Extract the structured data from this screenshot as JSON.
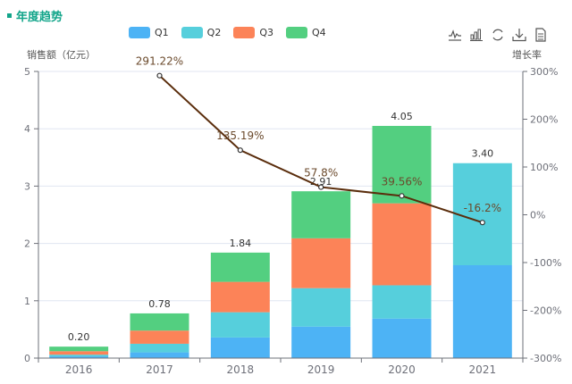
{
  "header": {
    "title": "年度趋势"
  },
  "toolbox": [
    {
      "name": "line-chart-icon"
    },
    {
      "name": "bar-chart-icon"
    },
    {
      "name": "refresh-icon"
    },
    {
      "name": "download-icon"
    },
    {
      "name": "data-view-icon"
    }
  ],
  "chart_data": {
    "type": "bar",
    "stacked": true,
    "title": "年度趋势",
    "categories": [
      "2016",
      "2017",
      "2018",
      "2019",
      "2020",
      "2021"
    ],
    "ylabel": "销售额（亿元）",
    "ylabel_right": "增长率",
    "ylim": [
      0,
      5
    ],
    "yticks": [
      "0",
      "1",
      "2",
      "3",
      "4",
      "5"
    ],
    "ylim_right": [
      -300,
      300
    ],
    "yticks_right": [
      "-300%",
      "-200%",
      "-100%",
      "0%",
      "100%",
      "200%",
      "300%"
    ],
    "grid": true,
    "legend_position": "top-center",
    "series": [
      {
        "name": "Q1",
        "color": "#4db3f5",
        "values": [
          0.03,
          0.1,
          0.36,
          0.55,
          0.69,
          1.62
        ]
      },
      {
        "name": "Q2",
        "color": "#56cfdc",
        "values": [
          0.03,
          0.15,
          0.44,
          0.67,
          0.58,
          1.78
        ]
      },
      {
        "name": "Q3",
        "color": "#fc8358",
        "values": [
          0.06,
          0.23,
          0.53,
          0.87,
          1.43,
          0
        ]
      },
      {
        "name": "Q4",
        "color": "#53cf80",
        "values": [
          0.08,
          0.3,
          0.51,
          0.82,
          1.35,
          0
        ]
      }
    ],
    "totals": [
      "0.20",
      "0.78",
      "1.84",
      "2.91",
      "4.05",
      "3.40"
    ],
    "totals_values": [
      0.2,
      0.78,
      1.84,
      2.91,
      4.05,
      3.4
    ],
    "growth": {
      "name": "增长率",
      "color": "#5a2d0c",
      "categories": [
        "2017",
        "2018",
        "2019",
        "2020",
        "2021"
      ],
      "values": [
        291.22,
        135.19,
        57.8,
        39.56,
        -16.2
      ],
      "labels": [
        "291.22%",
        "135.19%",
        "57.8%",
        "39.56%",
        "-16.2%"
      ]
    }
  }
}
